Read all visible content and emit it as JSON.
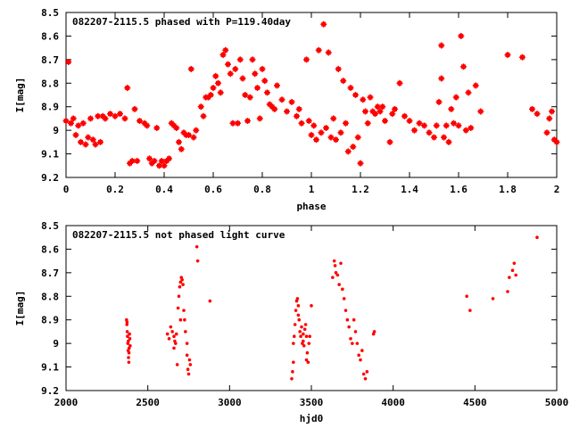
{
  "chart_data": [
    {
      "type": "scatter",
      "title": "082207-2115.5 phased with P=119.40day",
      "xlabel": "phase",
      "ylabel": "I[mag]",
      "xlim": [
        0,
        2
      ],
      "ylim": [
        8.5,
        9.2
      ],
      "y_inverted": true,
      "x_ticks": [
        "0",
        "0.2",
        "0.4",
        "0.6",
        "0.8",
        "1",
        "1.2",
        "1.4",
        "1.6",
        "1.8",
        "2"
      ],
      "y_ticks": [
        "8.5",
        "8.6",
        "8.7",
        "8.8",
        "8.9",
        "9",
        "9.1",
        "9.2"
      ],
      "marker_color": "#ff0000",
      "marker": "star",
      "series": [
        {
          "points": [
            [
              0.0,
              8.96
            ],
            [
              0.01,
              8.71
            ],
            [
              0.02,
              8.97
            ],
            [
              0.03,
              8.95
            ],
            [
              0.04,
              9.02
            ],
            [
              0.05,
              8.98
            ],
            [
              0.06,
              9.05
            ],
            [
              0.07,
              8.97
            ],
            [
              0.08,
              9.06
            ],
            [
              0.09,
              9.03
            ],
            [
              0.1,
              8.95
            ],
            [
              0.11,
              9.04
            ],
            [
              0.12,
              9.06
            ],
            [
              0.13,
              8.94
            ],
            [
              0.14,
              9.05
            ],
            [
              0.15,
              8.94
            ],
            [
              0.16,
              8.95
            ],
            [
              0.18,
              8.93
            ],
            [
              0.2,
              8.94
            ],
            [
              0.22,
              8.93
            ],
            [
              0.24,
              8.95
            ],
            [
              0.25,
              8.82
            ],
            [
              0.26,
              9.14
            ],
            [
              0.27,
              9.13
            ],
            [
              0.28,
              8.91
            ],
            [
              0.29,
              9.13
            ],
            [
              0.3,
              8.96
            ],
            [
              0.32,
              8.97
            ],
            [
              0.33,
              8.98
            ],
            [
              0.34,
              9.12
            ],
            [
              0.35,
              9.14
            ],
            [
              0.36,
              9.13
            ],
            [
              0.37,
              8.99
            ],
            [
              0.38,
              9.15
            ],
            [
              0.39,
              9.13
            ],
            [
              0.4,
              9.15
            ],
            [
              0.41,
              9.13
            ],
            [
              0.42,
              9.12
            ],
            [
              0.43,
              8.97
            ],
            [
              0.44,
              8.98
            ],
            [
              0.45,
              8.99
            ],
            [
              0.46,
              9.05
            ],
            [
              0.47,
              9.08
            ],
            [
              0.48,
              9.01
            ],
            [
              0.49,
              9.02
            ],
            [
              0.5,
              9.02
            ],
            [
              0.51,
              8.74
            ],
            [
              0.52,
              9.03
            ],
            [
              0.53,
              9.0
            ],
            [
              0.55,
              8.9
            ],
            [
              0.56,
              8.94
            ],
            [
              0.57,
              8.86
            ],
            [
              0.58,
              8.86
            ],
            [
              0.59,
              8.85
            ],
            [
              0.6,
              8.82
            ],
            [
              0.61,
              8.77
            ],
            [
              0.62,
              8.8
            ],
            [
              0.63,
              8.84
            ],
            [
              0.64,
              8.68
            ],
            [
              0.65,
              8.66
            ],
            [
              0.66,
              8.72
            ],
            [
              0.67,
              8.76
            ],
            [
              0.68,
              8.97
            ],
            [
              0.69,
              8.74
            ],
            [
              0.7,
              8.97
            ],
            [
              0.71,
              8.7
            ],
            [
              0.72,
              8.78
            ],
            [
              0.73,
              8.85
            ],
            [
              0.74,
              8.96
            ],
            [
              0.75,
              8.86
            ],
            [
              0.76,
              8.7
            ],
            [
              0.77,
              8.76
            ],
            [
              0.78,
              8.82
            ],
            [
              0.79,
              8.95
            ],
            [
              0.8,
              8.74
            ],
            [
              0.81,
              8.79
            ],
            [
              0.82,
              8.84
            ],
            [
              0.83,
              8.89
            ],
            [
              0.84,
              8.9
            ],
            [
              0.85,
              8.91
            ],
            [
              0.86,
              8.81
            ],
            [
              0.88,
              8.87
            ],
            [
              0.9,
              8.92
            ],
            [
              0.92,
              8.88
            ],
            [
              0.94,
              8.94
            ],
            [
              0.95,
              8.91
            ],
            [
              0.96,
              8.97
            ],
            [
              0.98,
              8.7
            ],
            [
              0.99,
              8.96
            ],
            [
              1.0,
              9.02
            ],
            [
              1.01,
              8.98
            ],
            [
              1.02,
              9.04
            ],
            [
              1.03,
              8.66
            ],
            [
              1.04,
              9.01
            ],
            [
              1.05,
              8.55
            ],
            [
              1.06,
              8.99
            ],
            [
              1.07,
              8.67
            ],
            [
              1.08,
              9.03
            ],
            [
              1.09,
              8.95
            ],
            [
              1.1,
              9.04
            ],
            [
              1.11,
              8.74
            ],
            [
              1.12,
              9.01
            ],
            [
              1.13,
              8.79
            ],
            [
              1.14,
              8.97
            ],
            [
              1.15,
              9.09
            ],
            [
              1.16,
              8.82
            ],
            [
              1.17,
              9.07
            ],
            [
              1.18,
              8.85
            ],
            [
              1.19,
              9.03
            ],
            [
              1.2,
              9.14
            ],
            [
              1.21,
              8.87
            ],
            [
              1.22,
              8.92
            ],
            [
              1.23,
              8.97
            ],
            [
              1.24,
              8.86
            ],
            [
              1.25,
              8.92
            ],
            [
              1.26,
              8.93
            ],
            [
              1.27,
              8.9
            ],
            [
              1.28,
              8.92
            ],
            [
              1.29,
              8.9
            ],
            [
              1.3,
              8.96
            ],
            [
              1.32,
              9.05
            ],
            [
              1.33,
              8.93
            ],
            [
              1.34,
              8.91
            ],
            [
              1.36,
              8.8
            ],
            [
              1.38,
              8.94
            ],
            [
              1.4,
              8.96
            ],
            [
              1.42,
              9.0
            ],
            [
              1.44,
              8.97
            ],
            [
              1.46,
              8.98
            ],
            [
              1.48,
              9.01
            ],
            [
              1.5,
              9.03
            ],
            [
              1.51,
              8.98
            ],
            [
              1.52,
              8.88
            ],
            [
              1.53,
              8.64
            ],
            [
              1.53,
              8.78
            ],
            [
              1.54,
              9.03
            ],
            [
              1.55,
              8.98
            ],
            [
              1.56,
              9.05
            ],
            [
              1.57,
              8.91
            ],
            [
              1.58,
              8.97
            ],
            [
              1.59,
              8.86
            ],
            [
              1.6,
              8.98
            ],
            [
              1.61,
              8.6
            ],
            [
              1.62,
              8.73
            ],
            [
              1.63,
              9.0
            ],
            [
              1.64,
              8.84
            ],
            [
              1.65,
              8.99
            ],
            [
              1.67,
              8.81
            ],
            [
              1.69,
              8.92
            ],
            [
              1.8,
              8.68
            ],
            [
              1.86,
              8.69
            ],
            [
              1.9,
              8.91
            ],
            [
              1.92,
              8.93
            ],
            [
              1.96,
              9.01
            ],
            [
              1.97,
              8.95
            ],
            [
              1.98,
              8.92
            ],
            [
              1.99,
              9.04
            ],
            [
              2.0,
              9.05
            ]
          ]
        }
      ]
    },
    {
      "type": "scatter",
      "title": "082207-2115.5 not phased light curve",
      "xlabel": "hjd0",
      "ylabel": "I[mag]",
      "xlim": [
        2000,
        5000
      ],
      "ylim": [
        8.5,
        9.2
      ],
      "y_inverted": true,
      "x_ticks": [
        "2000",
        "2500",
        "3000",
        "3500",
        "4000",
        "4500",
        "5000"
      ],
      "y_ticks": [
        "8.5",
        "8.6",
        "8.7",
        "8.8",
        "8.9",
        "9",
        "9.1",
        "9.2"
      ],
      "marker_color": "#ff0000",
      "marker": "dot",
      "series": [
        {
          "points": [
            [
              2370,
              8.9
            ],
            [
              2372,
              8.92
            ],
            [
              2374,
              8.95
            ],
            [
              2376,
              8.97
            ],
            [
              2378,
              9.0
            ],
            [
              2380,
              9.03
            ],
            [
              2382,
              9.06
            ],
            [
              2384,
              9.08
            ],
            [
              2386,
              9.02
            ],
            [
              2388,
              8.96
            ],
            [
              2390,
              8.98
            ],
            [
              2392,
              9.01
            ],
            [
              2373,
              8.91
            ],
            [
              2381,
              8.99
            ],
            [
              2385,
              9.04
            ],
            [
              2620,
              8.96
            ],
            [
              2630,
              8.98
            ],
            [
              2640,
              8.93
            ],
            [
              2650,
              8.95
            ],
            [
              2660,
              8.97
            ],
            [
              2665,
              8.99
            ],
            [
              2670,
              9.0
            ],
            [
              2675,
              8.96
            ],
            [
              2680,
              9.09
            ],
            [
              2685,
              8.85
            ],
            [
              2690,
              8.8
            ],
            [
              2695,
              8.76
            ],
            [
              2700,
              8.74
            ],
            [
              2705,
              8.72
            ],
            [
              2710,
              8.73
            ],
            [
              2715,
              8.75
            ],
            [
              2720,
              8.86
            ],
            [
              2725,
              8.9
            ],
            [
              2730,
              8.95
            ],
            [
              2740,
              9.05
            ],
            [
              2745,
              9.11
            ],
            [
              2750,
              9.13
            ],
            [
              2760,
              9.09
            ],
            [
              2800,
              8.59
            ],
            [
              2805,
              8.65
            ],
            [
              2880,
              8.82
            ],
            [
              2660,
              9.02
            ],
            [
              2700,
              8.9
            ],
            [
              2740,
              9.0
            ],
            [
              2755,
              9.07
            ],
            [
              3380,
              9.15
            ],
            [
              3385,
              9.12
            ],
            [
              3390,
              9.08
            ],
            [
              3395,
              8.97
            ],
            [
              3400,
              8.92
            ],
            [
              3405,
              8.86
            ],
            [
              3410,
              8.82
            ],
            [
              3415,
              8.81
            ],
            [
              3420,
              8.84
            ],
            [
              3425,
              8.9
            ],
            [
              3430,
              8.95
            ],
            [
              3435,
              8.97
            ],
            [
              3440,
              8.93
            ],
            [
              3445,
              9.0
            ],
            [
              3450,
              8.96
            ],
            [
              3455,
              9.01
            ],
            [
              3460,
              8.94
            ],
            [
              3465,
              8.92
            ],
            [
              3470,
              8.97
            ],
            [
              3475,
              9.04
            ],
            [
              3480,
              9.08
            ],
            [
              3485,
              9.0
            ],
            [
              3490,
              8.97
            ],
            [
              3500,
              8.84
            ],
            [
              3390,
              9.0
            ],
            [
              3420,
              8.88
            ],
            [
              3450,
              8.99
            ],
            [
              3470,
              9.07
            ],
            [
              3630,
              8.72
            ],
            [
              3640,
              8.65
            ],
            [
              3645,
              8.67
            ],
            [
              3650,
              8.7
            ],
            [
              3660,
              8.71
            ],
            [
              3670,
              8.75
            ],
            [
              3680,
              8.66
            ],
            [
              3690,
              8.77
            ],
            [
              3700,
              8.81
            ],
            [
              3710,
              8.86
            ],
            [
              3720,
              8.9
            ],
            [
              3730,
              8.93
            ],
            [
              3740,
              8.98
            ],
            [
              3750,
              9.0
            ],
            [
              3760,
              8.9
            ],
            [
              3770,
              8.95
            ],
            [
              3780,
              9.0
            ],
            [
              3790,
              9.05
            ],
            [
              3800,
              9.07
            ],
            [
              3810,
              9.03
            ],
            [
              3820,
              9.13
            ],
            [
              3830,
              9.15
            ],
            [
              3840,
              9.12
            ],
            [
              3880,
              8.96
            ],
            [
              3885,
              8.95
            ],
            [
              4450,
              8.8
            ],
            [
              4470,
              8.86
            ],
            [
              4610,
              8.81
            ],
            [
              4700,
              8.78
            ],
            [
              4710,
              8.72
            ],
            [
              4730,
              8.69
            ],
            [
              4740,
              8.66
            ],
            [
              4750,
              8.71
            ],
            [
              4880,
              8.55
            ]
          ]
        }
      ]
    }
  ]
}
